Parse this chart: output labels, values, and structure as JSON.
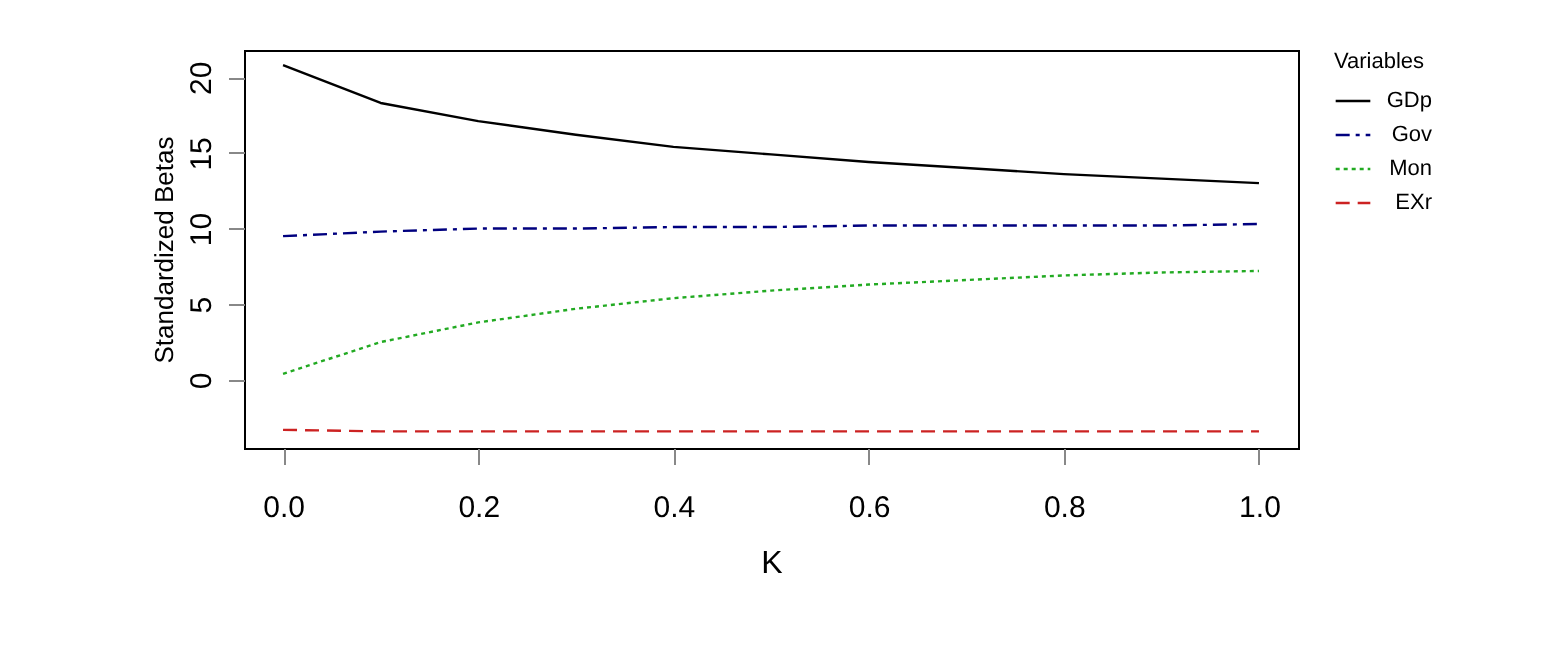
{
  "chart_data": {
    "type": "line",
    "xlabel": "K",
    "ylabel": "Standardized Betas",
    "legend_title": "Variables",
    "legend": "right",
    "x": [
      0,
      0.1,
      0.2,
      0.3,
      0.4,
      0.5,
      0.6,
      0.7,
      0.8,
      0.9,
      1.0
    ],
    "series": [
      {
        "name": "GDp",
        "color": "#000000",
        "line_style": "solid",
        "values": [
          20.8,
          18.3,
          17.1,
          16.2,
          15.4,
          14.9,
          14.4,
          14.0,
          13.6,
          13.3,
          13.0
        ]
      },
      {
        "name": "Gov",
        "color": "#00007f",
        "line_style": "dashdot",
        "values": [
          9.5,
          9.8,
          10.0,
          10.0,
          10.1,
          10.1,
          10.2,
          10.2,
          10.2,
          10.2,
          10.3
        ]
      },
      {
        "name": "Mon",
        "color": "#22aa22",
        "line_style": "dotted",
        "values": [
          0.4,
          2.5,
          3.8,
          4.7,
          5.4,
          5.9,
          6.3,
          6.6,
          6.9,
          7.1,
          7.2
        ]
      },
      {
        "name": "EXr",
        "color": "#cc2222",
        "line_style": "dashed",
        "values": [
          -3.3,
          -3.4,
          -3.4,
          -3.4,
          -3.4,
          -3.4,
          -3.4,
          -3.4,
          -3.4,
          -3.4,
          -3.4
        ]
      }
    ],
    "xlim": [
      -0.04,
      1.04
    ],
    "ylim": [
      -4.5,
      21.8
    ],
    "xticks": [
      {
        "value": 0,
        "label": "0.0"
      },
      0.2,
      0.4,
      0.6,
      0.8,
      {
        "value": 1,
        "label": "1.0"
      }
    ],
    "yticks": [
      0,
      5,
      10,
      15,
      20
    ],
    "grid": false
  }
}
